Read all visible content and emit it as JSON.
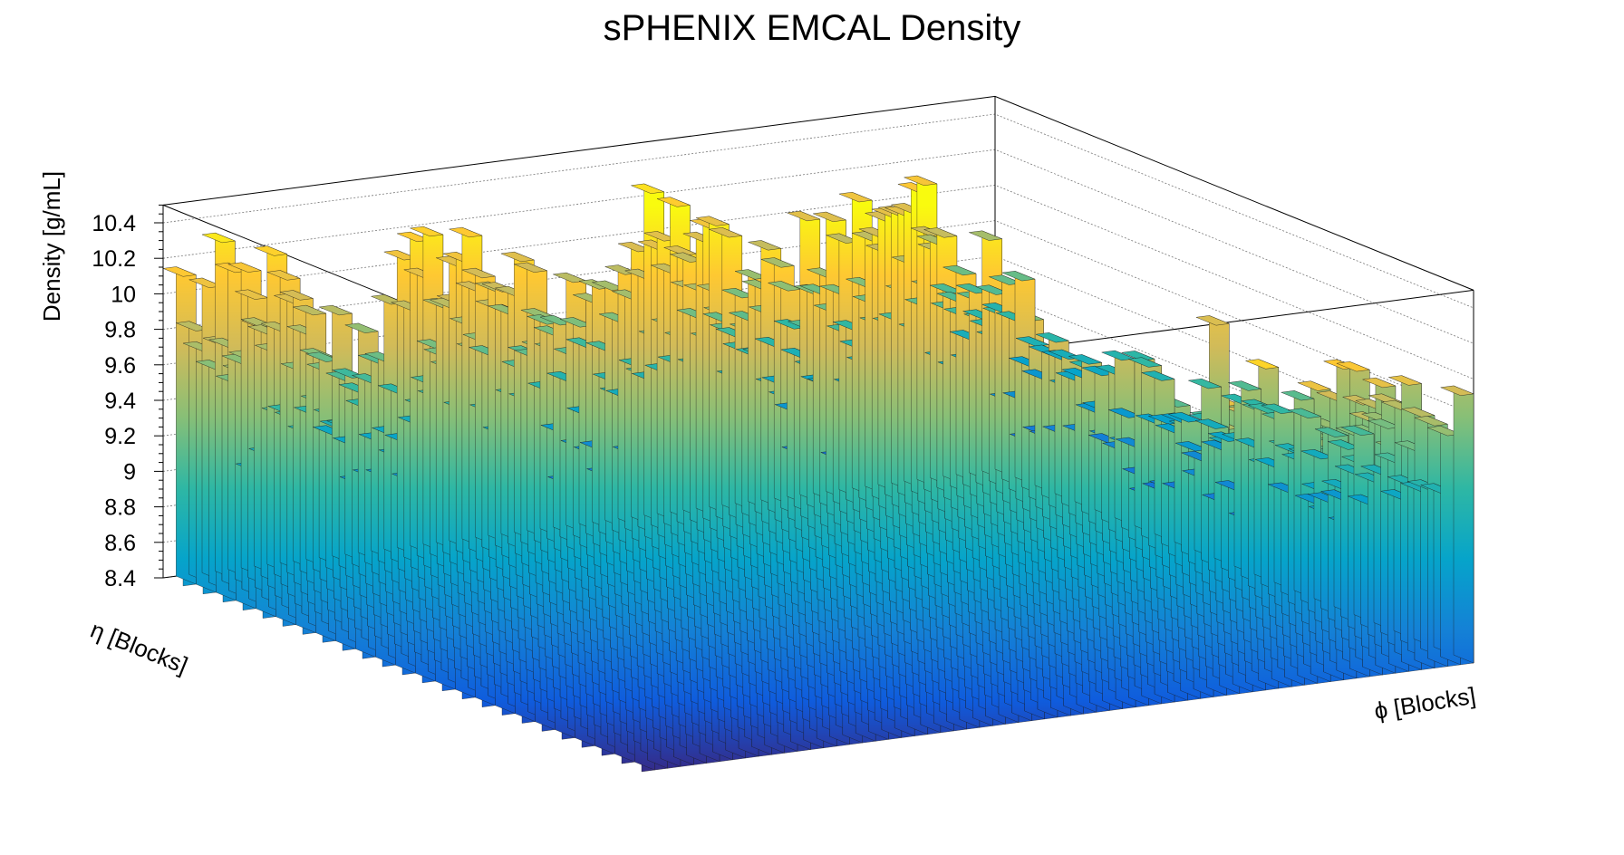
{
  "chart_data": {
    "type": "lego3d",
    "title": "sPHENIX EMCAL Density",
    "zlabel": "Density [g/mL]",
    "xlabel": "η [Blocks]",
    "ylabel": "ϕ [Blocks]",
    "zlim": [
      8.4,
      10.5
    ],
    "z_ticks": [
      "8.4",
      "8.6",
      "8.8",
      "9",
      "9.2",
      "9.4",
      "9.6",
      "9.8",
      "10",
      "10.2",
      "10.4"
    ],
    "eta_blocks": 24,
    "phi_blocks": 64,
    "grid": true,
    "colormap": [
      "#352a87",
      "#0f5cdd",
      "#1481d6",
      "#06a4ca",
      "#2eb7a4",
      "#87bf77",
      "#d1bb59",
      "#fec832",
      "#f9fb0e"
    ],
    "notable_bins": [
      {
        "eta_block": 23,
        "phi_block": 28,
        "density": 10.52
      },
      {
        "eta_block": 14,
        "phi_block": 58,
        "density": 9.95
      }
    ]
  }
}
